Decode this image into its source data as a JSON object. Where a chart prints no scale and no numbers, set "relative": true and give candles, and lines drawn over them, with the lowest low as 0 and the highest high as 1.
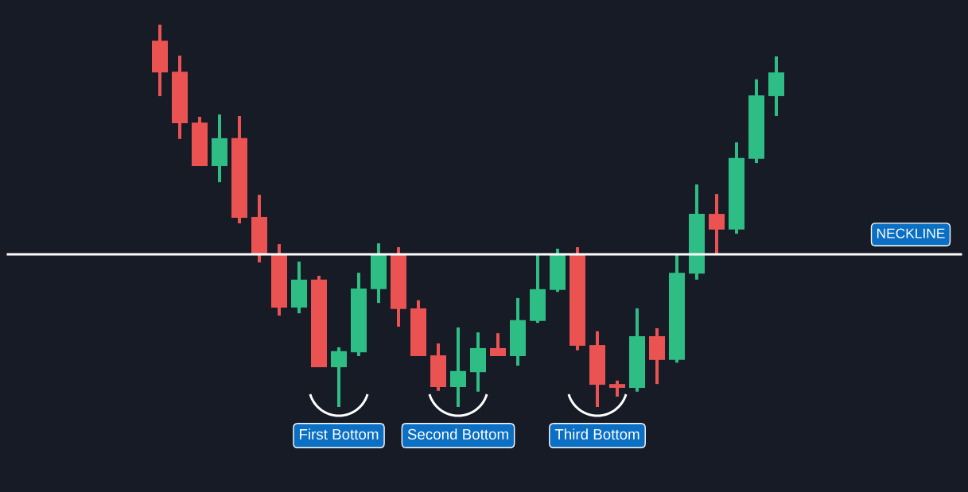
{
  "chart_data": {
    "type": "candlestick",
    "relative": true,
    "categories": [
      null,
      null,
      null,
      null,
      null,
      null,
      null,
      null,
      null,
      null,
      null,
      null,
      null,
      null,
      null,
      null,
      null,
      null,
      null,
      null,
      null,
      null,
      null,
      null,
      null,
      null,
      null,
      null,
      null,
      null,
      null,
      null
    ],
    "ohlc": [
      [
        0.958,
        1.0,
        0.813,
        0.875
      ],
      [
        0.877,
        0.919,
        0.701,
        0.742
      ],
      [
        0.744,
        0.759,
        0.63,
        0.63
      ],
      [
        0.63,
        0.765,
        0.588,
        0.703
      ],
      [
        0.703,
        0.761,
        0.48,
        0.495
      ],
      [
        0.497,
        0.555,
        0.378,
        0.401
      ],
      [
        0.401,
        0.426,
        0.239,
        0.26
      ],
      [
        0.26,
        0.38,
        0.245,
        0.333
      ],
      [
        0.333,
        0.343,
        0.104,
        0.104
      ],
      [
        0.104,
        0.156,
        0.0,
        0.146
      ],
      [
        0.143,
        0.351,
        0.133,
        0.31
      ],
      [
        0.308,
        0.428,
        0.272,
        0.399
      ],
      [
        0.399,
        0.418,
        0.21,
        0.256
      ],
      [
        0.258,
        0.279,
        0.133,
        0.133
      ],
      [
        0.135,
        0.166,
        0.042,
        0.052
      ],
      [
        0.052,
        0.208,
        0.0,
        0.094
      ],
      [
        0.091,
        0.195,
        0.04,
        0.154
      ],
      [
        0.154,
        0.193,
        0.133,
        0.133
      ],
      [
        0.133,
        0.285,
        0.108,
        0.227
      ],
      [
        0.225,
        0.399,
        0.22,
        0.308
      ],
      [
        0.306,
        0.414,
        0.301,
        0.399
      ],
      [
        0.399,
        0.418,
        0.148,
        0.16
      ],
      [
        0.162,
        0.198,
        0.0,
        0.058
      ],
      [
        0.06,
        0.069,
        0.027,
        0.05
      ],
      [
        0.05,
        0.258,
        0.04,
        0.185
      ],
      [
        0.185,
        0.206,
        0.06,
        0.123
      ],
      [
        0.123,
        0.399,
        0.116,
        0.351
      ],
      [
        0.349,
        0.582,
        0.333,
        0.505
      ],
      [
        0.505,
        0.557,
        0.401,
        0.464
      ],
      [
        0.464,
        0.692,
        0.453,
        0.651
      ],
      [
        0.649,
        0.857,
        0.638,
        0.815
      ],
      [
        0.813,
        0.917,
        0.761,
        0.875
      ]
    ],
    "colors": [
      "#eb5353",
      "#eb5353",
      "#eb5353",
      "#2ebd85",
      "#eb5353",
      "#eb5353",
      "#eb5353",
      "#2ebd85",
      "#eb5353",
      "#2ebd85",
      "#2ebd85",
      "#2ebd85",
      "#eb5353",
      "#eb5353",
      "#eb5353",
      "#2ebd85",
      "#2ebd85",
      "#eb5353",
      "#2ebd85",
      "#2ebd85",
      "#2ebd85",
      "#eb5353",
      "#eb5353",
      "#eb5353",
      "#2ebd85",
      "#eb5353",
      "#2ebd85",
      "#2ebd85",
      "#eb5353",
      "#2ebd85",
      "#2ebd85",
      "#2ebd85"
    ],
    "ref_lines": [
      {
        "axis": "y",
        "value": 0.399,
        "label": "NECKLINE",
        "color": "#ffffff",
        "line_style": "solid"
      }
    ],
    "annotations": [
      "First Bottom",
      "Second Bottom",
      "Third Bottom"
    ]
  }
}
